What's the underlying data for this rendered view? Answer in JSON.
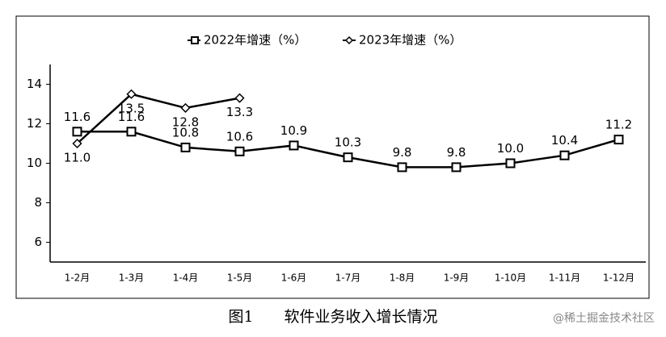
{
  "chart_data": {
    "type": "line",
    "title": "图1　　软件业务收入增长情况",
    "watermark": "@稀土掘金技术社区",
    "categories": [
      "1-2月",
      "1-3月",
      "1-4月",
      "1-5月",
      "1-6月",
      "1-7月",
      "1-8月",
      "1-9月",
      "1-10月",
      "1-11月",
      "1-12月"
    ],
    "series": [
      {
        "name": "2022年增速（%）",
        "color": "#000000",
        "marker": "square",
        "values": [
          11.6,
          11.6,
          10.8,
          10.6,
          10.9,
          10.3,
          9.8,
          9.8,
          10.0,
          10.4,
          11.2
        ],
        "value_labels": [
          "11.6",
          "11.6",
          "10.8",
          "10.6",
          "10.9",
          "10.3",
          "9.8",
          "9.8",
          "10.0",
          "10.4",
          "11.2"
        ]
      },
      {
        "name": "2023年增速（%）",
        "color": "#000000",
        "marker": "diamond",
        "values": [
          11.0,
          13.5,
          12.8,
          13.3,
          null,
          null,
          null,
          null,
          null,
          null,
          null
        ],
        "value_labels": [
          "11.0",
          "13.5",
          "12.8",
          "13.3",
          null,
          null,
          null,
          null,
          null,
          null,
          null
        ]
      }
    ],
    "ylim": [
      5,
      15
    ],
    "yticks": [
      6,
      8,
      10,
      12,
      14
    ],
    "grid": false,
    "legend": "top"
  }
}
